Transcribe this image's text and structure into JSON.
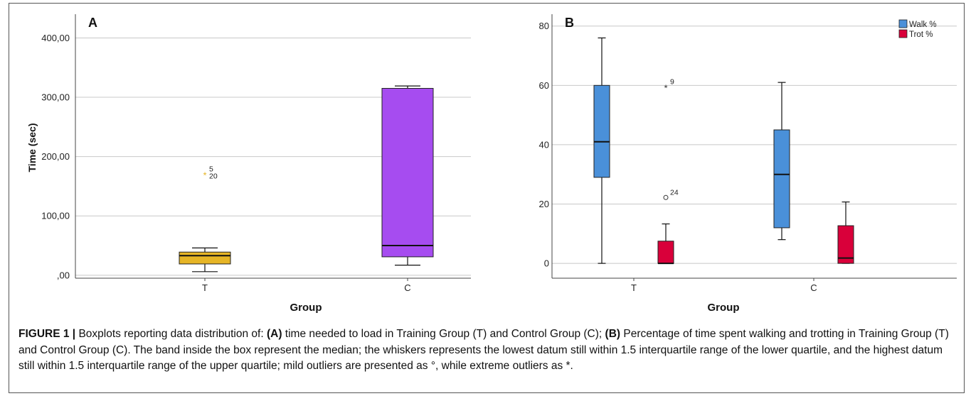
{
  "chart_data": [
    {
      "type": "boxplot",
      "panel_label": "A",
      "xlabel": "Group",
      "ylabel": "Time (sec)",
      "ylim": [
        -5,
        440
      ],
      "yticks": [
        0,
        100,
        200,
        300,
        400
      ],
      "ytick_labels": [
        ",00",
        "100,00",
        "200,00",
        "300,00",
        "400,00"
      ],
      "categories": [
        "T",
        "C"
      ],
      "grid": "horizontal",
      "boxes": [
        {
          "category": "T",
          "color": "#E6B526",
          "whisker_low": 6,
          "q1": 19,
          "median": 33,
          "q3": 39,
          "whisker_high": 46,
          "outliers": [
            {
              "value": 170,
              "symbol": "*",
              "labels": [
                "5",
                "20"
              ],
              "color": "#E6B526"
            }
          ]
        },
        {
          "category": "C",
          "color": "#A64CF0",
          "whisker_low": 17,
          "q1": 31,
          "median": 50,
          "q3": 315,
          "whisker_high": 319,
          "outliers": []
        }
      ]
    },
    {
      "type": "boxplot",
      "panel_label": "B",
      "xlabel": "Group",
      "ylabel": "",
      "ylim": [
        -5,
        84
      ],
      "yticks": [
        0,
        20,
        40,
        60,
        80
      ],
      "ytick_labels": [
        "0",
        "20",
        "40",
        "60",
        "80"
      ],
      "categories": [
        "T",
        "C"
      ],
      "grid": "horizontal",
      "legend_position": "top-right",
      "series": [
        {
          "name": "Walk %",
          "color": "#4A90D9"
        },
        {
          "name": "Trot %",
          "color": "#D9003A"
        }
      ],
      "boxes": [
        {
          "category": "T",
          "series": "Walk %",
          "whisker_low": 0,
          "q1": 29,
          "median": 41,
          "q3": 60,
          "whisker_high": 76,
          "outliers": []
        },
        {
          "category": "T",
          "series": "Trot %",
          "whisker_low": 0,
          "q1": 0,
          "median": 0,
          "q3": 7.5,
          "whisker_high": 13.3,
          "outliers": [
            {
              "value": 22.2,
              "symbol": "o",
              "labels": [
                "24"
              ]
            },
            {
              "value": 59.5,
              "symbol": "*",
              "labels": [
                "9"
              ]
            }
          ]
        },
        {
          "category": "C",
          "series": "Walk %",
          "whisker_low": 8,
          "q1": 12,
          "median": 30,
          "q3": 45,
          "whisker_high": 61,
          "outliers": []
        },
        {
          "category": "C",
          "series": "Trot %",
          "whisker_low": 0,
          "q1": 0,
          "median": 1.8,
          "q3": 12.7,
          "whisker_high": 20.7,
          "outliers": []
        }
      ]
    }
  ],
  "caption": {
    "label": "FIGURE 1 |",
    "t1": " Boxplots reporting data distribution of: ",
    "a_label": "(A)",
    "t2": " time needed to load in Training Group (T) and Control Group (C); ",
    "b_label": "(B)",
    "t3": " Percentage of time spent walking and trotting in Training Group (T) and Control Group (C). The band inside the box represent the median; the whiskers represents the lowest datum still within 1.5 interquartile range of the lower quartile, and the highest datum still within 1.5 interquartile range of the upper quartile; mild outliers are presented as °, while extreme outliers as *."
  }
}
